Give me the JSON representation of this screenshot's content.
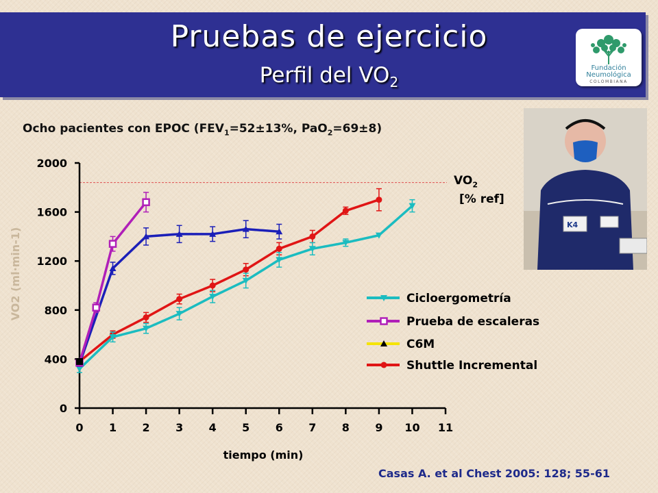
{
  "slide": {
    "title": "Pruebas de ejercicio",
    "subtitle_main": "Perfil del VO",
    "subtitle_sub": "2",
    "chart_heading": {
      "p1": "Ocho pacientes con EPOC (FEV",
      "s1": "1",
      "p2": "=52±13%, PaO",
      "s2": "2",
      "p3": "=69±8)"
    },
    "citation": "Casas A. et al Chest 2005: 128; 55-61",
    "logo": {
      "line1": "Fundación",
      "line2": "Neumológica",
      "line3": "COLOMBIANA"
    },
    "ref_label": {
      "line1_main": "VO",
      "line1_sub": "2",
      "line2": "[% ref]"
    },
    "photo": {
      "tag": "K4"
    },
    "colors": {
      "header": "#2e3092",
      "background": "#efe2cf",
      "ciclo": "#1bbcc0",
      "escaleras": "#b01fb8",
      "c6m": "#1b1fb8",
      "c6m_legend": "#f5e400",
      "shuttle": "#e01515",
      "ref_line": "#e05050"
    }
  },
  "chart_data": {
    "type": "line",
    "xlabel": "tiempo (min)",
    "ylabel": "VO2 (ml·min-1)",
    "xlim": [
      0,
      11
    ],
    "ylim": [
      0,
      2000
    ],
    "x_ticks": [
      0,
      1,
      2,
      3,
      4,
      5,
      6,
      7,
      8,
      9,
      10,
      11
    ],
    "y_ticks": [
      0,
      400,
      800,
      1200,
      1600,
      2000
    ],
    "reference_line": {
      "y": 1840,
      "label": "VO2 [% ref]"
    },
    "series": [
      {
        "name": "Cicloergometría",
        "color": "#1bbcc0",
        "marker": "triangle-down",
        "x": [
          0,
          1,
          2,
          3,
          4,
          5,
          6,
          7,
          8,
          9,
          10
        ],
        "y": [
          320,
          580,
          650,
          770,
          910,
          1040,
          1210,
          1300,
          1350,
          1410,
          1650
        ],
        "err": [
          30,
          40,
          40,
          50,
          50,
          60,
          60,
          50,
          30,
          0,
          50
        ]
      },
      {
        "name": "Prueba de escaleras",
        "color": "#b01fb8",
        "marker": "square",
        "x": [
          0,
          0.5,
          1,
          2
        ],
        "y": [
          370,
          820,
          1340,
          1680
        ],
        "err": [
          20,
          40,
          60,
          80
        ]
      },
      {
        "name": "C6M",
        "color": "#1b1fb8",
        "legend_color": "#f5e400",
        "marker": "triangle-up",
        "x": [
          0,
          1,
          2,
          3,
          4,
          5,
          6
        ],
        "y": [
          360,
          1140,
          1400,
          1420,
          1420,
          1460,
          1440
        ],
        "err": [
          20,
          50,
          70,
          70,
          60,
          70,
          60
        ]
      },
      {
        "name": "Shuttle Incremental",
        "color": "#e01515",
        "marker": "circle",
        "x": [
          0,
          1,
          2,
          3,
          4,
          5,
          6,
          7,
          8,
          9
        ],
        "y": [
          380,
          600,
          740,
          890,
          1000,
          1130,
          1300,
          1400,
          1610,
          1700
        ],
        "err": [
          20,
          30,
          40,
          40,
          50,
          50,
          50,
          50,
          30,
          90
        ]
      }
    ]
  }
}
